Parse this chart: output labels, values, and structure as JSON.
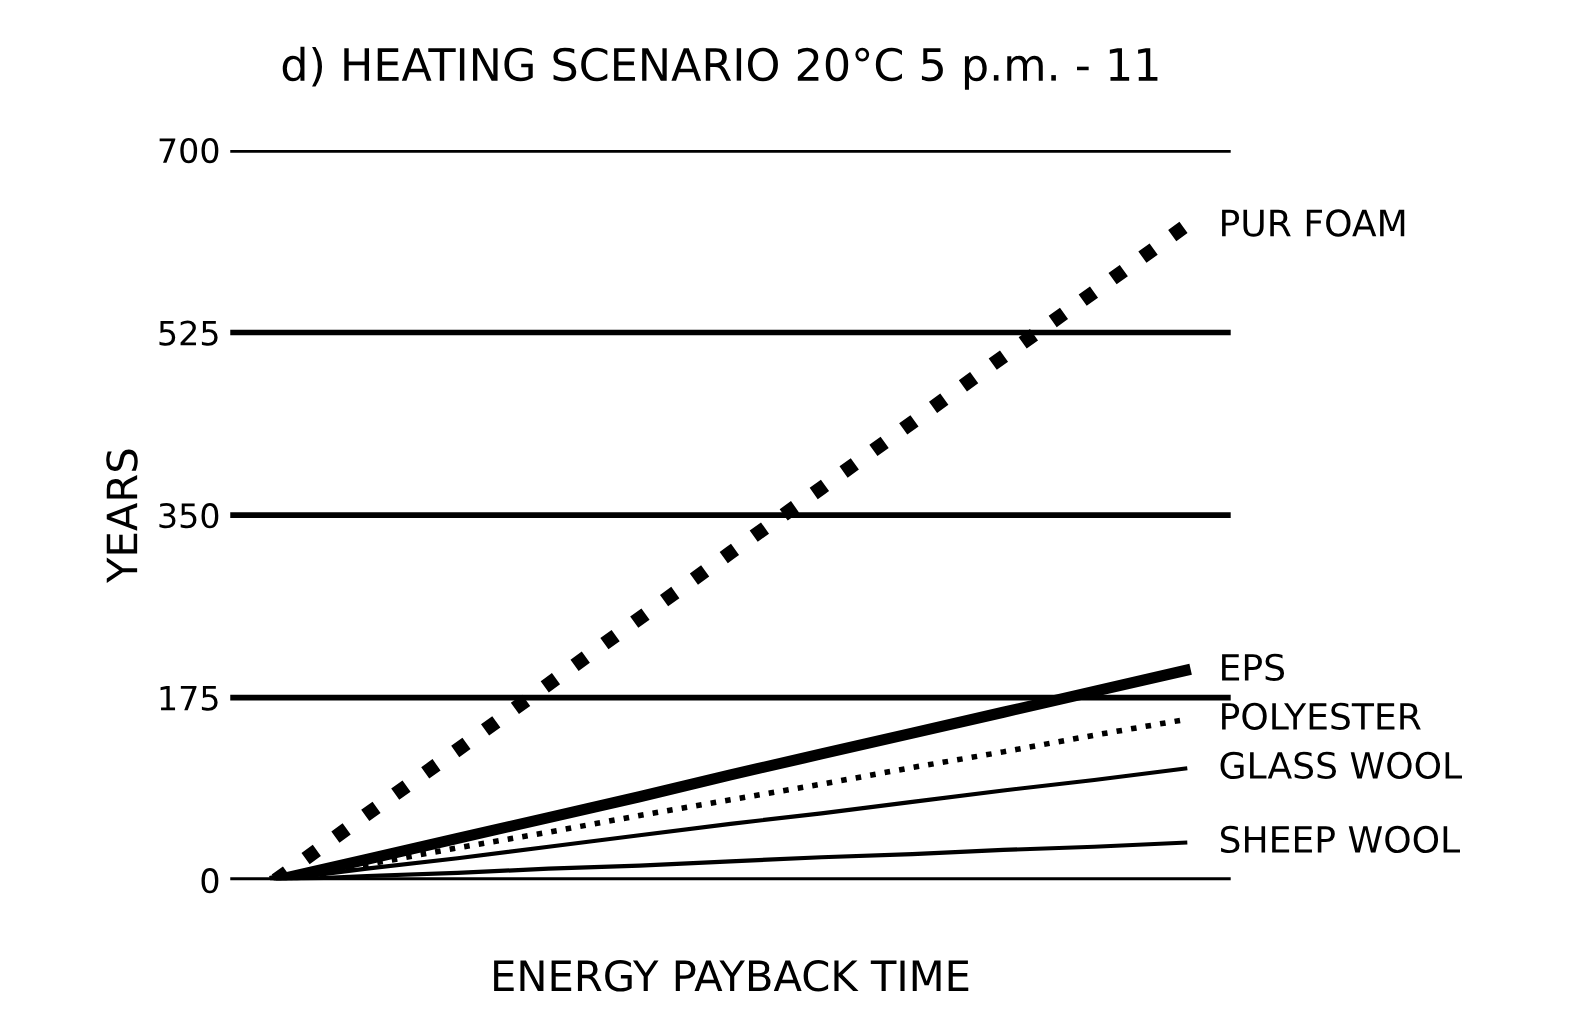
{
  "chart_data": {
    "type": "line",
    "title": "d) HEATING SCENARIO 20°C 5 p.m. - 11",
    "xlabel": "ENERGY PAYBACK TIME",
    "ylabel": "YEARS",
    "categories": [
      null,
      null,
      null,
      null,
      null,
      null,
      null,
      null,
      null,
      null,
      null
    ],
    "series": [
      {
        "name": "PUR FOAM",
        "color": "#000000",
        "values": [
          0,
          63,
          125,
          188,
          251,
          314,
          376,
          439,
          502,
          564,
          627
        ],
        "line_style": "dotted"
      },
      {
        "name": "EPS",
        "color": "#000000",
        "values": [
          0,
          20,
          40,
          60,
          80,
          101,
          121,
          141,
          161,
          181,
          201
        ],
        "line_style": "solid"
      },
      {
        "name": "POLYESTER",
        "color": "#000000",
        "values": [
          0,
          15,
          31,
          46,
          62,
          77,
          92,
          108,
          123,
          139,
          154
        ],
        "line_style": "dotted"
      },
      {
        "name": "GLASS WOOL",
        "color": "#000000",
        "values": [
          0,
          11,
          21,
          32,
          43,
          54,
          64,
          75,
          86,
          96,
          107
        ],
        "line_style": "solid"
      },
      {
        "name": "SHEEP WOOL",
        "color": "#000000",
        "values": [
          0,
          4,
          7,
          11,
          14,
          18,
          22,
          25,
          29,
          32,
          36
        ],
        "line_style": "solid"
      }
    ],
    "ylim": [
      0,
      700
    ],
    "yticks": [
      0,
      175,
      350,
      525,
      700
    ],
    "grid": "y",
    "legend": false
  }
}
